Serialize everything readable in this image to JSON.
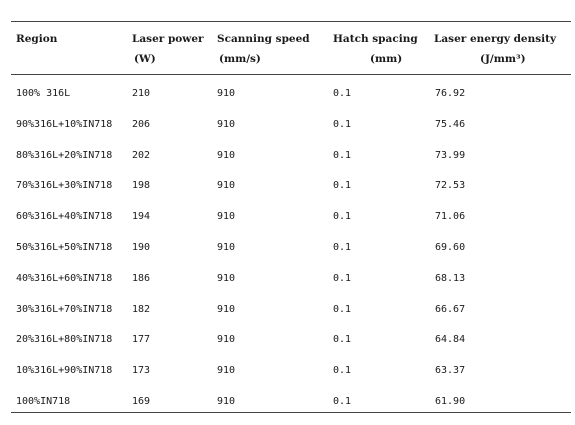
{
  "table": {
    "headers": [
      {
        "key": "region",
        "line1": "Region",
        "line2": ""
      },
      {
        "key": "laser_power",
        "line1": "Laser power",
        "line2": "(W)"
      },
      {
        "key": "scanning_speed",
        "line1": "Scanning speed",
        "line2": "(mm/s)"
      },
      {
        "key": "hatch_spacing",
        "line1": "Hatch spacing",
        "line2": "(mm)"
      },
      {
        "key": "energy_density",
        "line1": "Laser energy density",
        "line2": "(J/mm³)"
      }
    ],
    "rows": [
      {
        "region": "100% 316L",
        "laser_power": "210",
        "scanning_speed": "910",
        "hatch_spacing": "0.1",
        "energy_density": "76.92"
      },
      {
        "region": "90%316L+10%IN718",
        "laser_power": "206",
        "scanning_speed": "910",
        "hatch_spacing": "0.1",
        "energy_density": "75.46"
      },
      {
        "region": "80%316L+20%IN718",
        "laser_power": "202",
        "scanning_speed": "910",
        "hatch_spacing": "0.1",
        "energy_density": "73.99"
      },
      {
        "region": "70%316L+30%IN718",
        "laser_power": "198",
        "scanning_speed": "910",
        "hatch_spacing": "0.1",
        "energy_density": "72.53"
      },
      {
        "region": "60%316L+40%IN718",
        "laser_power": "194",
        "scanning_speed": "910",
        "hatch_spacing": "0.1",
        "energy_density": "71.06"
      },
      {
        "region": "50%316L+50%IN718",
        "laser_power": "190",
        "scanning_speed": "910",
        "hatch_spacing": "0.1",
        "energy_density": "69.60"
      },
      {
        "region": "40%316L+60%IN718",
        "laser_power": "186",
        "scanning_speed": "910",
        "hatch_spacing": "0.1",
        "energy_density": "68.13"
      },
      {
        "region": "30%316L+70%IN718",
        "laser_power": "182",
        "scanning_speed": "910",
        "hatch_spacing": "0.1",
        "energy_density": "66.67"
      },
      {
        "region": "20%316L+80%IN718",
        "laser_power": "177",
        "scanning_speed": "910",
        "hatch_spacing": "0.1",
        "energy_density": "64.84"
      },
      {
        "region": "10%316L+90%IN718",
        "laser_power": "173",
        "scanning_speed": "910",
        "hatch_spacing": "0.1",
        "energy_density": "63.37"
      },
      {
        "region": "100%IN718",
        "laser_power": "169",
        "scanning_speed": "910",
        "hatch_spacing": "0.1",
        "energy_density": "61.90"
      }
    ]
  }
}
